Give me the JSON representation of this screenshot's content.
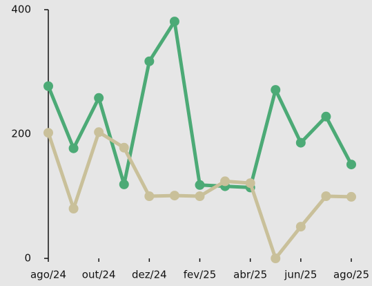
{
  "chart_data": {
    "type": "line",
    "categories": [
      "ago/24",
      null,
      "out/24",
      null,
      "dez/24",
      null,
      "fev/25",
      null,
      "abr/25",
      null,
      "jun/25",
      null,
      "ago/25"
    ],
    "series": [
      {
        "color": "#4caa76",
        "values": [
          277,
          177,
          258,
          119,
          317,
          381,
          118,
          116,
          114,
          271,
          186,
          228,
          151
        ]
      },
      {
        "color": "#c9c09a",
        "values": [
          202,
          80,
          203,
          178,
          100,
          101,
          100,
          124,
          121,
          0,
          51,
          100,
          99
        ]
      }
    ],
    "ylim": [
      0,
      400
    ],
    "yticks": [
      0,
      200,
      400
    ]
  }
}
